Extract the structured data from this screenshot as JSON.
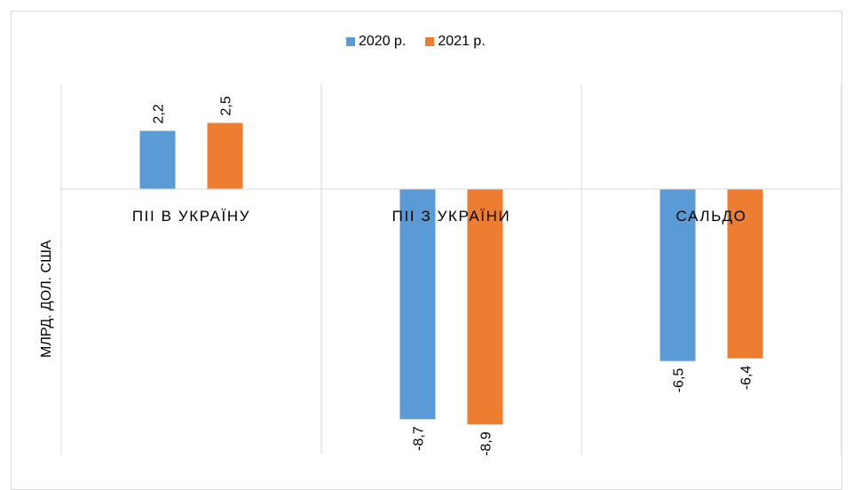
{
  "chart_data": {
    "type": "bar",
    "categories": [
      "ПІІ В УКРАЇНУ",
      "ПІІ З УКРАЇНИ",
      "САЛЬДО"
    ],
    "series": [
      {
        "name": "2020 р.",
        "values": [
          2.2,
          -8.7,
          -6.5
        ],
        "labels": [
          "2,2",
          "-8,7",
          "-6,5"
        ],
        "color": "#5b9bd5"
      },
      {
        "name": "2021 р.",
        "values": [
          2.5,
          -8.9,
          -6.4
        ],
        "labels": [
          "2,5",
          "-8,9",
          "-6,4"
        ],
        "color": "#ed7d31"
      }
    ],
    "ylabel": "МЛРД. ДОЛ. США",
    "xlabel": "",
    "ylim": [
      -10,
      4
    ],
    "grid": true,
    "legend": "top-center"
  }
}
